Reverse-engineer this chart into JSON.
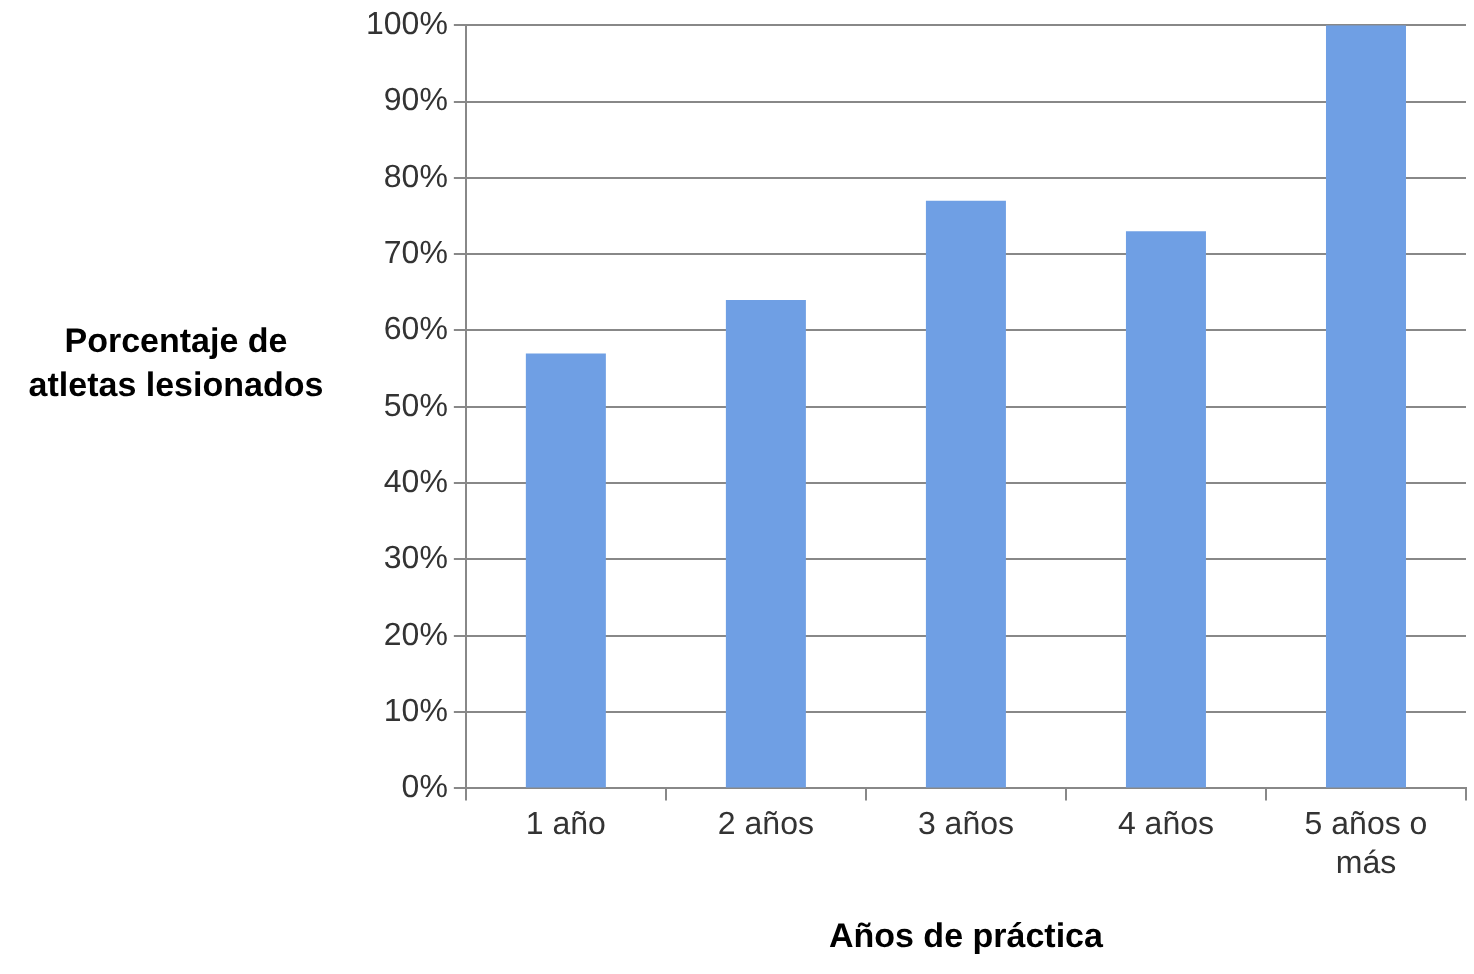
{
  "chart_data": {
    "type": "bar",
    "categories": [
      "1 año",
      "2 años",
      "3 años",
      "4 años",
      "5 años o más"
    ],
    "values": [
      57,
      64,
      77,
      73,
      100
    ],
    "color": "#6f9fe4",
    "ylim": [
      0,
      100
    ],
    "yticks": [
      {
        "value": 0,
        "label": "0%"
      },
      {
        "value": 10,
        "label": "10%"
      },
      {
        "value": 20,
        "label": "20%"
      },
      {
        "value": 30,
        "label": "30%"
      },
      {
        "value": 40,
        "label": "40%"
      },
      {
        "value": 50,
        "label": "50%"
      },
      {
        "value": 60,
        "label": "60%"
      },
      {
        "value": 70,
        "label": "70%"
      },
      {
        "value": 80,
        "label": "80%"
      },
      {
        "value": 90,
        "label": "90%"
      },
      {
        "value": 100,
        "label": "100%"
      }
    ],
    "grid": "y",
    "xlabel": "Años de práctica",
    "ylabel": "Porcentaje de atletas lesionados"
  }
}
